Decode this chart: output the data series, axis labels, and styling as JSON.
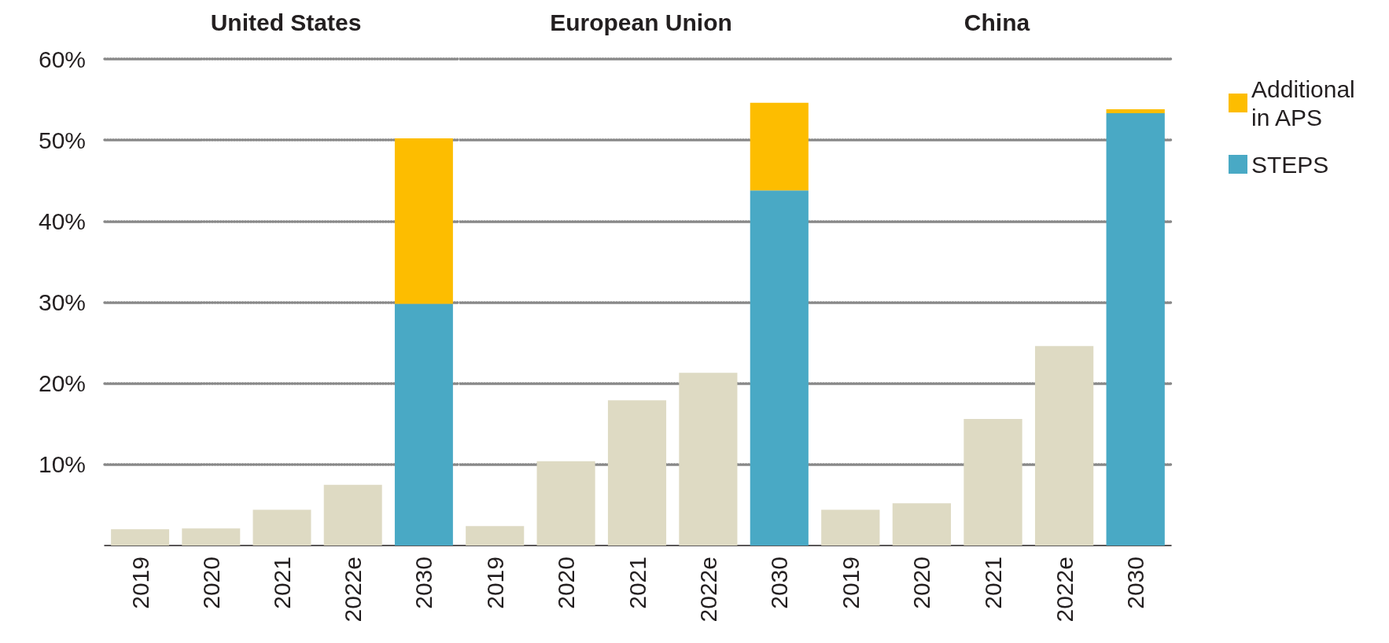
{
  "chart_data": [
    {
      "type": "bar",
      "title": "United States",
      "categories": [
        "2019",
        "2020",
        "2021",
        "2022e",
        "2030"
      ],
      "stacked": true,
      "ylim": [
        0,
        60
      ],
      "yticks": [
        {
          "value": 10,
          "label": "10%"
        },
        {
          "value": 20,
          "label": "20%"
        },
        {
          "value": 30,
          "label": "30%"
        },
        {
          "value": 40,
          "label": "40%"
        },
        {
          "value": 50,
          "label": "50%"
        },
        {
          "value": 60,
          "label": "60%"
        }
      ],
      "grid": "y",
      "series": [
        {
          "color": "#dedac3",
          "values": [
            2.0,
            2.1,
            4.4,
            7.5,
            null
          ]
        },
        {
          "color": "#49a9c5",
          "values": [
            null,
            null,
            null,
            null,
            29.8
          ]
        },
        {
          "color": "#fdbd00",
          "values": [
            null,
            null,
            null,
            null,
            20.4
          ]
        }
      ]
    },
    {
      "type": "bar",
      "title": "European Union",
      "categories": [
        "2019",
        "2020",
        "2021",
        "2022e",
        "2030"
      ],
      "stacked": true,
      "ylim": [
        0,
        60
      ],
      "yticks": [
        10,
        20,
        30,
        40,
        50,
        60
      ],
      "grid": "y",
      "tick_labels": "x",
      "series": [
        {
          "color": "#dedac3",
          "values": [
            2.4,
            10.4,
            17.9,
            21.3,
            null
          ]
        },
        {
          "color": "#49a9c5",
          "values": [
            null,
            null,
            null,
            null,
            43.8
          ]
        },
        {
          "color": "#fdbd00",
          "values": [
            null,
            null,
            null,
            null,
            10.8
          ]
        }
      ]
    },
    {
      "type": "bar",
      "title": "China",
      "categories": [
        "2019",
        "2020",
        "2021",
        "2022e",
        "2030"
      ],
      "stacked": true,
      "ylim": [
        0,
        60
      ],
      "yticks": [
        10,
        20,
        30,
        40,
        50,
        60
      ],
      "grid": "y",
      "tick_labels": "x",
      "legend": "right",
      "series": [
        {
          "color": "#dedac3",
          "values": [
            4.4,
            5.2,
            15.6,
            24.6,
            null
          ]
        },
        {
          "name": "STEPS",
          "color": "#49a9c5",
          "values": [
            null,
            null,
            null,
            null,
            53.3
          ]
        },
        {
          "name": "Additional in APS",
          "color": "#fdbd00",
          "values": [
            null,
            null,
            null,
            null,
            0.5
          ]
        }
      ]
    }
  ]
}
